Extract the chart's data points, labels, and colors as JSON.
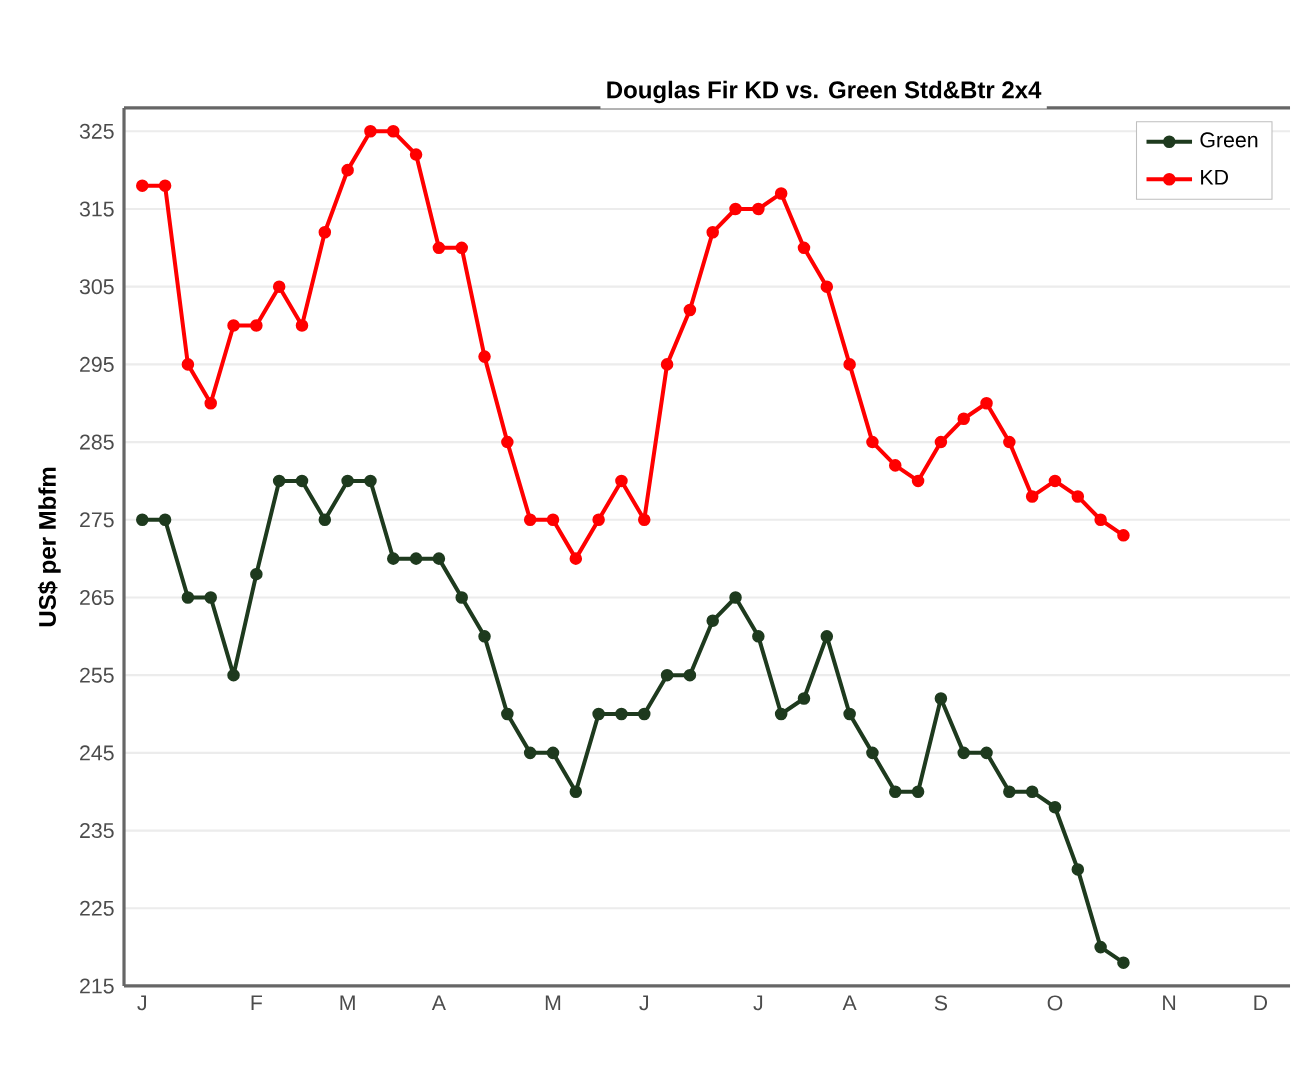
{
  "chart_data": {
    "type": "line",
    "title": "Douglas Fir KD vs. Green Std&Btr 2x4",
    "ylabel": "US$ per Mbfm",
    "categories": [
      "J",
      null,
      null,
      null,
      null,
      "F",
      null,
      null,
      null,
      "M",
      null,
      null,
      null,
      "A",
      null,
      null,
      null,
      null,
      "M",
      null,
      null,
      null,
      "J",
      null,
      null,
      null,
      null,
      "J",
      null,
      null,
      null,
      "A",
      null,
      null,
      null,
      "S",
      null,
      null,
      null,
      null,
      "O",
      null,
      null,
      null,
      null,
      "N",
      null,
      null,
      null,
      "D"
    ],
    "series": [
      {
        "name": "Green",
        "color": "#1e3a1e",
        "values": [
          275,
          275,
          265,
          265,
          255,
          268,
          280,
          280,
          275,
          280,
          280,
          270,
          270,
          270,
          265,
          260,
          250,
          245,
          245,
          240,
          250,
          250,
          250,
          255,
          255,
          262,
          265,
          260,
          250,
          252,
          260,
          250,
          245,
          240,
          240,
          252,
          245,
          245,
          240,
          240,
          238,
          230,
          220,
          218,
          null,
          null,
          null,
          null,
          null,
          null
        ]
      },
      {
        "name": "KD",
        "color": "#ff0000",
        "values": [
          318,
          318,
          295,
          290,
          300,
          300,
          305,
          300,
          312,
          320,
          325,
          325,
          322,
          310,
          310,
          296,
          285,
          275,
          275,
          270,
          275,
          280,
          275,
          295,
          302,
          312,
          315,
          315,
          317,
          310,
          305,
          295,
          285,
          282,
          280,
          285,
          288,
          290,
          285,
          278,
          280,
          278,
          275,
          273,
          null,
          null,
          null,
          null,
          null,
          null
        ]
      }
    ],
    "ylim": [
      215,
      328
    ],
    "yticks": [
      215,
      225,
      235,
      245,
      255,
      265,
      275,
      285,
      295,
      305,
      315,
      325
    ],
    "grid": "y",
    "legend": "top right",
    "marker": "circle",
    "line_style": "solid"
  }
}
